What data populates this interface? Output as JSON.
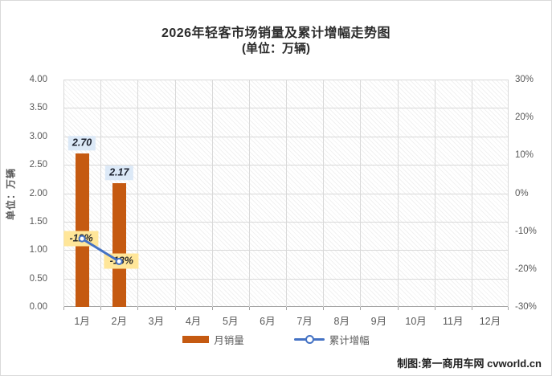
{
  "header": {
    "title_line1": "2026年轻客市场销量及累计增幅走势图",
    "title_line2": "(单位：万辆)"
  },
  "footer": {
    "credit": "制图:第一商用车网 cvworld.cn"
  },
  "chart_data": {
    "type": "bar",
    "subtype": "combo-bar-line",
    "categories": [
      "1月",
      "2月",
      "3月",
      "4月",
      "5月",
      "6月",
      "7月",
      "8月",
      "9月",
      "10月",
      "11月",
      "12月"
    ],
    "series": [
      {
        "name": "月销量",
        "type": "bar",
        "axis": "left",
        "color": "#c55a11",
        "values": [
          2.7,
          2.17,
          null,
          null,
          null,
          null,
          null,
          null,
          null,
          null,
          null,
          null
        ],
        "data_labels": [
          "2.70",
          "2.17",
          "",
          "",
          "",
          "",
          "",
          "",
          "",
          "",
          "",
          ""
        ]
      },
      {
        "name": "累计增幅",
        "type": "line",
        "axis": "right",
        "color": "#4472c4",
        "values": [
          -12,
          -18,
          null,
          null,
          null,
          null,
          null,
          null,
          null,
          null,
          null,
          null
        ],
        "data_labels": [
          "-12%",
          "-18%",
          "",
          "",
          "",
          "",
          "",
          "",
          "",
          "",
          "",
          ""
        ]
      }
    ],
    "left_axis": {
      "title": "单位：万辆",
      "min": 0,
      "max": 4,
      "step": 0.5,
      "tick_labels": [
        "4.00",
        "3.50",
        "3.00",
        "2.50",
        "2.00",
        "1.50",
        "1.00",
        "0.50",
        "0.00"
      ]
    },
    "right_axis": {
      "min": -30,
      "max": 30,
      "step": 10,
      "tick_labels": [
        "30%",
        "20%",
        "10%",
        "0%",
        "-10%",
        "-20%",
        "-30%"
      ]
    },
    "grid": "both",
    "legend_position": "bottom",
    "label_styles": {
      "bar_label_bg": "#dce9f7",
      "pct_label_bg": "#ffe699"
    }
  }
}
